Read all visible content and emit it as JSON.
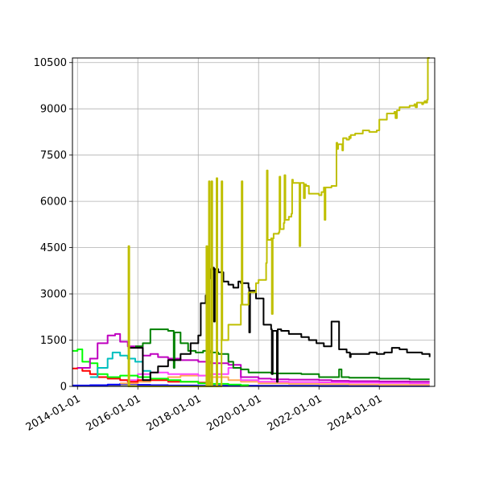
{
  "chart_data": {
    "type": "line",
    "title": "",
    "xlabel": "",
    "ylabel": "",
    "grid": true,
    "x_axis": {
      "type": "date",
      "range": [
        "2013-11-01",
        "2025-11-01"
      ],
      "ticks": [
        "2014-01-01",
        "2016-01-01",
        "2018-01-01",
        "2020-01-01",
        "2022-01-01",
        "2024-01-01"
      ]
    },
    "y_axis": {
      "range": [
        0,
        10650
      ],
      "ticks": [
        0,
        1500,
        3000,
        4500,
        6000,
        7500,
        9000,
        10500
      ]
    },
    "series": [
      {
        "color": "#bfbf00",
        "x": [
          "2015-09-01",
          "2015-09-10",
          "2015-09-20",
          "2017-06-01",
          "2018-01-01",
          "2018-04-01",
          "2018-04-10",
          "2018-04-20",
          "2018-05-01",
          "2018-05-10",
          "2018-05-20",
          "2018-06-01",
          "2018-06-10",
          "2018-06-20",
          "2018-08-01",
          "2018-08-10",
          "2018-08-20",
          "2018-10-01",
          "2018-10-10",
          "2018-10-20",
          "2019-01-01",
          "2019-06-01",
          "2019-06-10",
          "2019-06-20",
          "2019-09-01",
          "2019-12-01",
          "2020-01-01",
          "2020-04-01",
          "2020-04-10",
          "2020-04-20",
          "2020-06-01",
          "2020-06-10",
          "2020-06-20",
          "2020-07-01",
          "2020-09-01",
          "2020-09-10",
          "2020-09-20",
          "2020-11-01",
          "2020-11-10",
          "2020-11-20",
          "2021-01-01",
          "2021-02-01",
          "2021-02-10",
          "2021-02-20",
          "2021-05-01",
          "2021-05-10",
          "2021-05-20",
          "2021-07-01",
          "2021-07-15",
          "2021-07-30",
          "2021-09-01",
          "2022-01-01",
          "2022-02-01",
          "2022-03-01",
          "2022-03-10",
          "2022-03-20",
          "2022-06-01",
          "2022-08-01",
          "2022-08-10",
          "2022-08-20",
          "2022-10-01",
          "2022-10-10",
          "2022-10-20",
          "2022-12-01",
          "2023-01-01",
          "2023-01-10",
          "2023-01-20",
          "2023-03-01",
          "2023-03-15",
          "2023-06-01",
          "2023-06-15",
          "2023-09-01",
          "2023-12-01",
          "2024-01-01",
          "2024-04-01",
          "2024-07-01",
          "2024-07-15",
          "2024-08-01",
          "2024-09-01",
          "2024-12-01",
          "2025-01-01",
          "2025-03-01",
          "2025-03-15",
          "2025-04-01",
          "2025-06-01",
          "2025-06-15",
          "2025-07-01",
          "2025-07-15",
          "2025-08-01",
          "2025-08-10",
          "2025-09-01"
        ],
        "y": [
          0,
          4550,
          0,
          0,
          0,
          0,
          4550,
          0,
          0,
          6650,
          0,
          0,
          6650,
          0,
          0,
          6750,
          0,
          0,
          6650,
          1500,
          2000,
          2650,
          6650,
          2650,
          3050,
          3350,
          3450,
          4000,
          7000,
          4750,
          4800,
          2350,
          4800,
          4950,
          5000,
          6800,
          5100,
          5300,
          6850,
          5400,
          5500,
          5600,
          6700,
          6600,
          6600,
          4550,
          6600,
          6100,
          6550,
          6500,
          6250,
          6200,
          6300,
          6450,
          5400,
          6450,
          6500,
          7900,
          7700,
          7850,
          7850,
          7650,
          8050,
          8000,
          8100,
          8050,
          8150,
          8150,
          8200,
          8200,
          8300,
          8250,
          8300,
          8650,
          8850,
          8900,
          8700,
          8950,
          9050,
          9050,
          9100,
          9150,
          9050,
          9200,
          9150,
          9200,
          9250,
          9200,
          9300,
          10650,
          10650
        ]
      },
      {
        "color": "#000000",
        "x": [
          "2015-09-01",
          "2016-03-01",
          "2016-06-01",
          "2016-09-01",
          "2017-01-01",
          "2017-06-01",
          "2017-10-01",
          "2018-01-01",
          "2018-02-01",
          "2018-04-01",
          "2018-05-01",
          "2018-05-10",
          "2018-05-20",
          "2018-06-01",
          "2018-07-01",
          "2018-07-10",
          "2018-07-20",
          "2018-09-01",
          "2018-11-01",
          "2019-01-01",
          "2019-03-01",
          "2019-05-01",
          "2019-06-01",
          "2019-09-01",
          "2019-09-10",
          "2019-09-20",
          "2019-12-01",
          "2020-03-01",
          "2020-04-01",
          "2020-06-01",
          "2020-06-10",
          "2020-06-20",
          "2020-08-01",
          "2020-08-10",
          "2020-08-20",
          "2020-10-01",
          "2021-01-01",
          "2021-03-01",
          "2021-06-01",
          "2021-09-01",
          "2021-12-01",
          "2022-03-01",
          "2022-06-01",
          "2022-09-01",
          "2022-12-01",
          "2023-01-01",
          "2023-01-10",
          "2023-01-20",
          "2023-06-01",
          "2023-09-01",
          "2023-12-01",
          "2024-03-01",
          "2024-06-01",
          "2024-09-01",
          "2024-12-01",
          "2025-03-01",
          "2025-06-01",
          "2025-09-01"
        ],
        "y": [
          1250,
          200,
          450,
          650,
          850,
          1050,
          1400,
          1650,
          2700,
          2950,
          3200,
          1950,
          3500,
          3800,
          3850,
          2100,
          3800,
          3700,
          3400,
          3300,
          3200,
          3400,
          3350,
          3200,
          1750,
          3100,
          2850,
          2000,
          2000,
          1850,
          400,
          1800,
          1800,
          150,
          1850,
          1800,
          1700,
          1700,
          1600,
          1500,
          1400,
          1300,
          2100,
          1200,
          1100,
          1100,
          950,
          1050,
          1050,
          1100,
          1050,
          1100,
          1250,
          1200,
          1100,
          1100,
          1050,
          950
        ]
      },
      {
        "color": "#008000",
        "x": [
          "2015-12-01",
          "2016-03-01",
          "2016-06-01",
          "2016-09-01",
          "2017-01-01",
          "2017-03-01",
          "2017-03-10",
          "2017-03-20",
          "2017-06-01",
          "2017-09-01",
          "2017-12-01",
          "2018-03-01",
          "2018-06-01",
          "2018-09-01",
          "2019-01-01",
          "2019-03-01",
          "2019-06-01",
          "2019-09-01",
          "2020-01-01",
          "2020-06-01",
          "2021-01-01",
          "2021-06-01",
          "2022-01-01",
          "2022-06-01",
          "2022-09-01",
          "2022-10-01",
          "2023-01-01",
          "2024-01-01",
          "2025-01-01",
          "2025-09-01"
        ],
        "y": [
          1300,
          1400,
          1850,
          1850,
          1800,
          1800,
          600,
          1750,
          1400,
          1150,
          1100,
          1150,
          1100,
          1050,
          800,
          600,
          550,
          450,
          450,
          420,
          420,
          400,
          300,
          300,
          550,
          300,
          280,
          250,
          230,
          230
        ]
      },
      {
        "color": "#bf00bf",
        "x": [
          "2014-01-01",
          "2014-06-01",
          "2014-09-01",
          "2015-01-01",
          "2015-04-01",
          "2015-06-01",
          "2015-09-01",
          "2015-12-01",
          "2016-03-01",
          "2016-06-01",
          "2016-09-01",
          "2017-01-01",
          "2017-06-01",
          "2017-09-01",
          "2018-01-01",
          "2018-06-01",
          "2019-01-01",
          "2019-06-01",
          "2020-01-01",
          "2020-06-01",
          "2021-01-01",
          "2022-01-01",
          "2022-06-01",
          "2023-01-01",
          "2024-01-01",
          "2025-01-01",
          "2025-09-01"
        ],
        "y": [
          600,
          900,
          1400,
          1650,
          1700,
          1450,
          1300,
          1300,
          1000,
          1050,
          950,
          900,
          850,
          850,
          800,
          750,
          700,
          300,
          250,
          230,
          220,
          200,
          180,
          170,
          160,
          150,
          150
        ]
      },
      {
        "color": "#00bfbf",
        "x": [
          "2014-06-01",
          "2014-09-01",
          "2015-01-01",
          "2015-03-01",
          "2015-06-01",
          "2015-09-01",
          "2015-12-01",
          "2016-03-01",
          "2016-06-01"
        ],
        "y": [
          300,
          600,
          900,
          1100,
          1000,
          900,
          800,
          500,
          300
        ]
      },
      {
        "color": "#00ff00",
        "x": [
          "2013-11-01",
          "2014-01-01",
          "2014-03-01",
          "2014-06-01",
          "2014-09-01",
          "2015-01-01",
          "2015-06-01",
          "2016-01-01",
          "2016-06-01",
          "2017-01-01",
          "2017-06-01",
          "2018-01-01",
          "2018-06-01",
          "2019-01-01",
          "2019-06-01",
          "2019-09-01"
        ],
        "y": [
          1150,
          1200,
          800,
          750,
          400,
          300,
          350,
          300,
          250,
          200,
          150,
          100,
          80,
          60,
          40,
          30
        ]
      },
      {
        "color": "#ff0000",
        "x": [
          "2013-11-01",
          "2014-01-01",
          "2014-03-01",
          "2014-06-01",
          "2014-09-01",
          "2015-01-01",
          "2015-06-01",
          "2015-09-01",
          "2016-01-01",
          "2016-06-01",
          "2017-01-01",
          "2017-06-01",
          "2018-01-01",
          "2018-06-01"
        ],
        "y": [
          580,
          600,
          500,
          400,
          300,
          250,
          200,
          150,
          200,
          200,
          150,
          150,
          120,
          100
        ]
      },
      {
        "color": "#ff44ff",
        "x": [
          "2015-06-01",
          "2016-01-01",
          "2016-06-01",
          "2017-01-01",
          "2017-06-01",
          "2018-01-01",
          "2018-06-01",
          "2019-01-01",
          "2019-06-01",
          "2020-01-01",
          "2021-01-01",
          "2022-01-01",
          "2023-01-01",
          "2024-01-01",
          "2025-01-01",
          "2025-09-01"
        ],
        "y": [
          200,
          400,
          450,
          400,
          400,
          350,
          400,
          600,
          200,
          150,
          140,
          130,
          120,
          110,
          100,
          100
        ]
      },
      {
        "color": "#ffaa55",
        "x": [
          "2015-06-01",
          "2016-01-01",
          "2016-06-01",
          "2017-01-01",
          "2017-06-01",
          "2018-01-01",
          "2018-06-01",
          "2019-01-01",
          "2019-06-01",
          "2020-01-01",
          "2021-01-01",
          "2022-01-01",
          "2023-01-01",
          "2024-01-01",
          "2025-09-01"
        ],
        "y": [
          100,
          150,
          200,
          300,
          350,
          350,
          300,
          200,
          150,
          100,
          80,
          70,
          60,
          50,
          50
        ]
      },
      {
        "color": "#0000ff",
        "x": [
          "2013-11-01",
          "2014-06-01",
          "2015-01-01",
          "2015-06-01",
          "2016-01-01",
          "2016-06-01",
          "2017-01-01",
          "2018-01-01",
          "2019-01-01",
          "2020-01-01",
          "2021-01-01",
          "2022-01-01",
          "2023-01-01",
          "2024-01-01",
          "2025-09-01"
        ],
        "y": [
          30,
          40,
          60,
          80,
          50,
          40,
          30,
          20,
          20,
          15,
          15,
          10,
          10,
          10,
          10
        ]
      },
      {
        "color": "#7f7f7f",
        "x": [
          "2013-11-01",
          "2016-01-01",
          "2018-01-01",
          "2020-01-01",
          "2022-01-01",
          "2024-01-01",
          "2025-09-01"
        ],
        "y": [
          20,
          20,
          20,
          20,
          20,
          20,
          20
        ]
      }
    ]
  }
}
